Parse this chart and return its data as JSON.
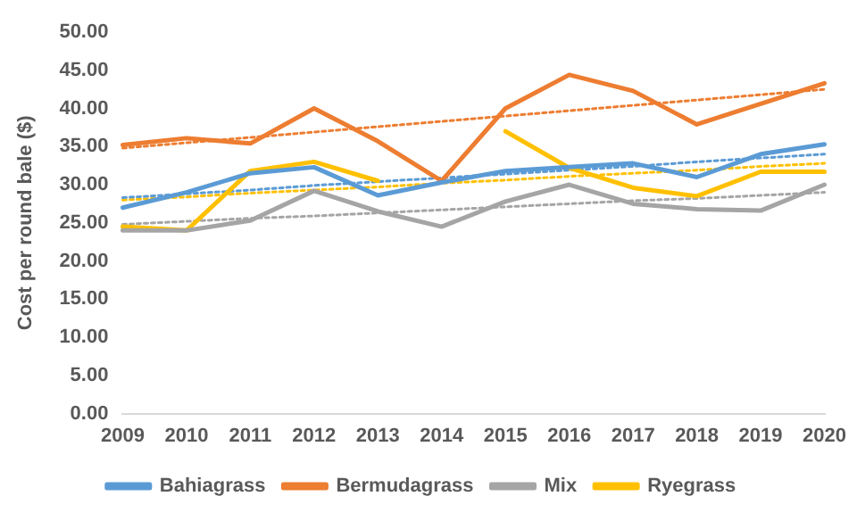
{
  "chart_data": {
    "type": "line",
    "ylabel": "Cost per round bale ($)",
    "categories": [
      "2009",
      "2010",
      "2011",
      "2012",
      "2013",
      "2014",
      "2015",
      "2016",
      "2017",
      "2018",
      "2019",
      "2020"
    ],
    "series": [
      {
        "name": "Bahiagrass",
        "color": "#5b9bd5",
        "values": [
          27,
          29,
          31.5,
          32.3,
          28.6,
          30.3,
          31.8,
          32.3,
          32.8,
          31,
          34,
          35.3
        ]
      },
      {
        "name": "Bermudagrass",
        "color": "#ed7d31",
        "values": [
          35.2,
          36.1,
          35.4,
          40,
          35.7,
          30.5,
          40,
          44.4,
          42.3,
          37.9,
          40.6,
          43.3
        ]
      },
      {
        "name": "Mix",
        "color": "#a5a5a5",
        "values": [
          24,
          24,
          25.3,
          29.2,
          26.5,
          24.5,
          27.8,
          30,
          27.5,
          26.8,
          26.6,
          30
        ]
      },
      {
        "name": "Ryegrass",
        "color": "#ffc000",
        "values": [
          24.5,
          24,
          31.8,
          33,
          30.5,
          null,
          37,
          32.2,
          29.6,
          28.5,
          31.7,
          31.7
        ]
      },
      {
        "type": "line",
        "color": "#5b9bd5",
        "line_style": "dotted",
        "values": [
          28.3,
          28.8,
          29.3,
          29.9,
          30.4,
          30.9,
          31.4,
          31.9,
          32.4,
          33.0,
          33.5,
          34.0
        ]
      },
      {
        "type": "line",
        "color": "#ed7d31",
        "line_style": "dotted",
        "values": [
          34.8,
          35.5,
          36.2,
          36.9,
          37.6,
          38.3,
          39.0,
          39.7,
          40.4,
          41.1,
          41.8,
          42.5
        ]
      },
      {
        "type": "line",
        "color": "#a5a5a5",
        "line_style": "dotted",
        "values": [
          24.8,
          25.2,
          25.6,
          25.9,
          26.3,
          26.7,
          27.1,
          27.5,
          27.9,
          28.2,
          28.6,
          29.0
        ]
      },
      {
        "type": "line",
        "color": "#ffc000",
        "line_style": "dotted",
        "values": [
          28.0,
          28.4,
          28.9,
          29.3,
          29.7,
          30.2,
          30.6,
          31.1,
          31.5,
          31.9,
          32.4,
          32.8
        ]
      }
    ],
    "ylim": [
      0,
      50
    ],
    "yticks": [
      {
        "value": 0,
        "label": "0.00"
      },
      {
        "value": 5,
        "label": "5.00"
      },
      {
        "value": 10,
        "label": "10.00"
      },
      {
        "value": 15,
        "label": "15.00"
      },
      {
        "value": 20,
        "label": "20.00"
      },
      {
        "value": 25,
        "label": "25.00"
      },
      {
        "value": 30,
        "label": "30.00"
      },
      {
        "value": 35,
        "label": "35.00"
      },
      {
        "value": 40,
        "label": "40.00"
      },
      {
        "value": 45,
        "label": "45.00"
      },
      {
        "value": 50,
        "label": "50.00"
      }
    ],
    "grid": false,
    "legend": "bottom",
    "marker": "none",
    "line_style": "solid"
  }
}
